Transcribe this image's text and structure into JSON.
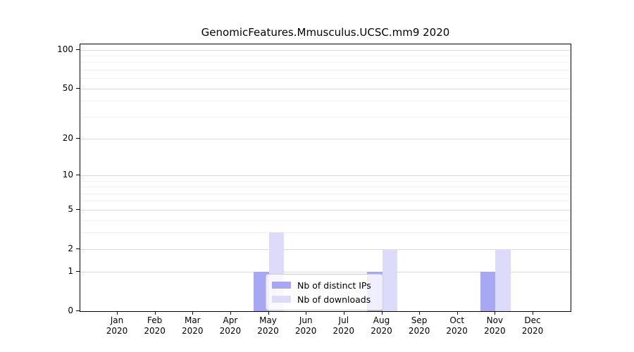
{
  "chart_data": {
    "type": "bar",
    "title": "GenomicFeatures.Mmusculus.UCSC.mm9 2020",
    "categories": [
      "Jan",
      "Feb",
      "Mar",
      "Apr",
      "May",
      "Jun",
      "Jul",
      "Aug",
      "Sep",
      "Oct",
      "Nov",
      "Dec"
    ],
    "xtick_year": "2020",
    "series": [
      {
        "name": "Nb of distinct IPs",
        "color": "#a8a8f2",
        "values": [
          0,
          0,
          0,
          0,
          1,
          0,
          0,
          1,
          0,
          0,
          1,
          0
        ]
      },
      {
        "name": "Nb of downloads",
        "color": "#dcdcfa",
        "values": [
          0,
          0,
          0,
          0,
          3,
          0,
          0,
          2,
          0,
          0,
          2,
          0
        ]
      }
    ],
    "yscale": "log1p",
    "ylim": [
      0,
      110
    ],
    "yticks": [
      100,
      50,
      20,
      10,
      5,
      2,
      1,
      0
    ],
    "minor_gridlines": [
      3,
      4,
      6,
      7,
      8,
      9,
      30,
      40,
      60,
      70,
      80,
      90
    ],
    "grid": "on",
    "legend_position": "lower center"
  }
}
